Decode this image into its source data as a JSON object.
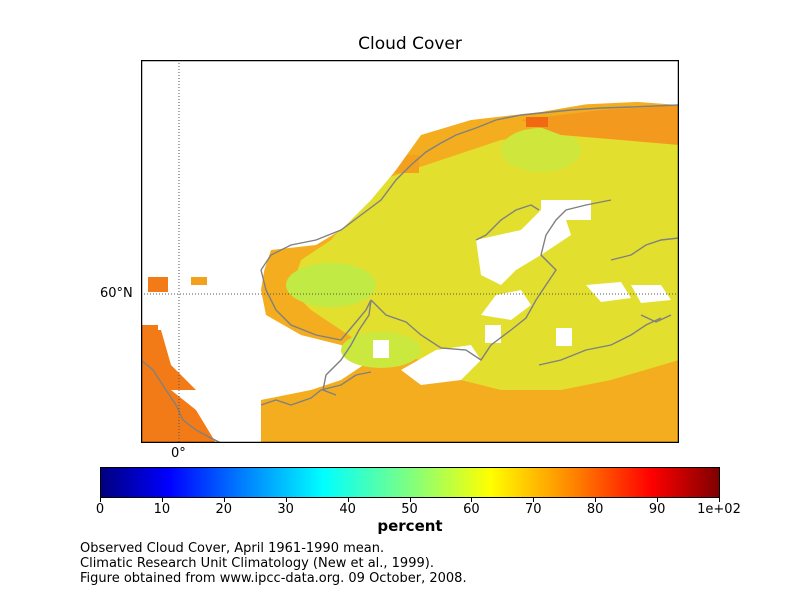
{
  "title": "Cloud Cover",
  "map": {
    "lat_label": "60°N",
    "lon_label": "0°",
    "colors": {
      "land_outline": "#808080",
      "gridline": "#555555",
      "background": "#ffffff"
    }
  },
  "colorbar": {
    "label": "percent",
    "ticks": [
      "0",
      "10",
      "20",
      "30",
      "40",
      "50",
      "60",
      "70",
      "80",
      "90",
      "1e+02"
    ],
    "range": [
      0,
      100
    ],
    "colormap": "jet"
  },
  "caption": [
    "Observed Cloud Cover, April 1961-1990 mean.",
    "Climatic Research Unit Climatology (New et al., 1999).",
    "Figure obtained from www.ipcc-data.org. 09 October, 2008."
  ]
}
